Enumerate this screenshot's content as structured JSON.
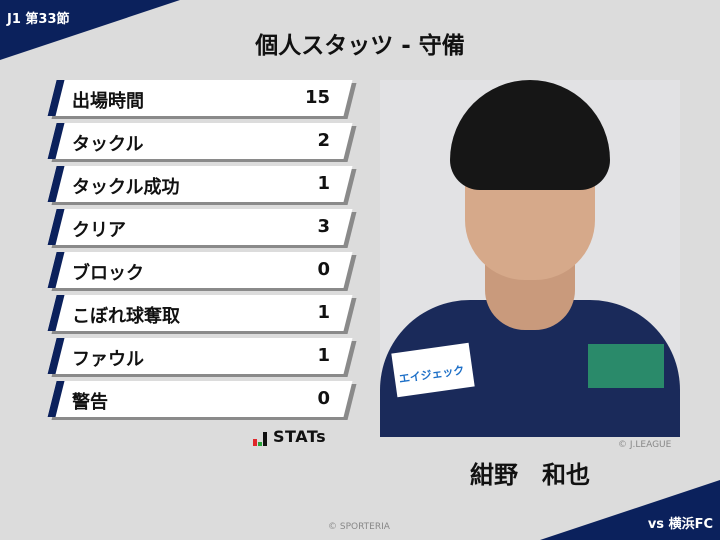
{
  "header": {
    "round": "J1 第33節",
    "title": "個人スタッツ - 守備",
    "opponent": "vs 横浜FC"
  },
  "stats": [
    {
      "label": "出場時間",
      "value": "15"
    },
    {
      "label": "タックル",
      "value": "2"
    },
    {
      "label": "タックル成功",
      "value": "1"
    },
    {
      "label": "クリア",
      "value": "3"
    },
    {
      "label": "ブロック",
      "value": "0"
    },
    {
      "label": "こぼれ球奪取",
      "value": "1"
    },
    {
      "label": "ファウル",
      "value": "1"
    },
    {
      "label": "警告",
      "value": "0"
    }
  ],
  "logo": {
    "text": "STATs"
  },
  "player": {
    "name": "紺野　和也",
    "photo_credit": "© J.LEAGUE",
    "jersey_sponsor": "エイジェック"
  },
  "footer": {
    "copyright": "© SPORTERIA"
  },
  "colors": {
    "navy": "#0b215c",
    "background": "#dcdcdc"
  }
}
